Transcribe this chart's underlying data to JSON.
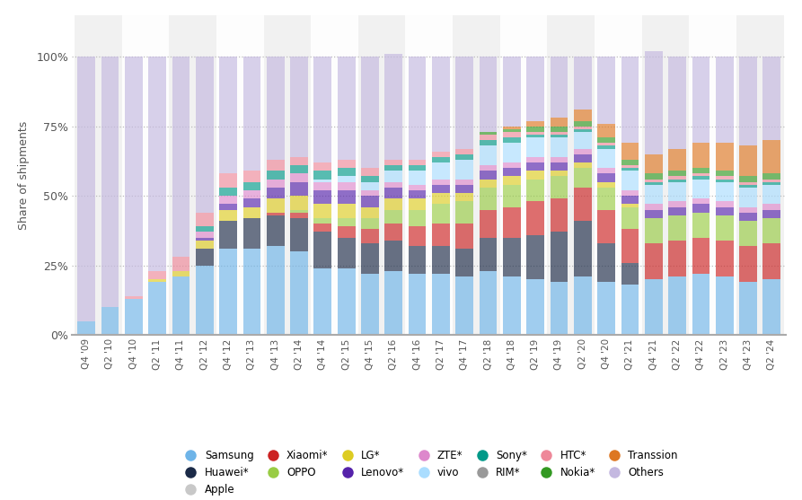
{
  "ylabel": "Share of shipments",
  "quarters": [
    "Q4 '09",
    "Q2 '10",
    "Q4 '10",
    "Q2 '11",
    "Q4 '11",
    "Q2 '12",
    "Q4 '12",
    "Q2 '13",
    "Q4 '13",
    "Q2 '14",
    "Q4 '14",
    "Q2 '15",
    "Q4 '15",
    "Q2 '16",
    "Q4 '16",
    "Q2 '17",
    "Q4 '17",
    "Q2 '18",
    "Q4 '18",
    "Q2 '19",
    "Q4 '19",
    "Q2 '20",
    "Q4 '20",
    "Q2 '21",
    "Q4 '21",
    "Q2 '22",
    "Q4 '22",
    "Q2 '23",
    "Q4 '23",
    "Q2 '24"
  ],
  "series": [
    {
      "name": "Samsung",
      "color": "#6eb4e8",
      "data": [
        5,
        10,
        13,
        19,
        21,
        25,
        31,
        31,
        32,
        30,
        24,
        24,
        22,
        23,
        22,
        22,
        21,
        23,
        21,
        20,
        19,
        21,
        19,
        18,
        20,
        21,
        22,
        21,
        19,
        20
      ]
    },
    {
      "name": "Huawei*",
      "color": "#1b2a47",
      "data": [
        0,
        0,
        0,
        0,
        0,
        6,
        10,
        11,
        11,
        12,
        13,
        11,
        11,
        11,
        10,
        10,
        10,
        12,
        14,
        16,
        18,
        20,
        14,
        8,
        0,
        0,
        0,
        0,
        0,
        0
      ]
    },
    {
      "name": "Apple",
      "color": "#c8c8c8",
      "data": [
        0,
        0,
        0,
        0,
        0,
        0,
        0,
        0,
        0,
        0,
        0,
        0,
        0,
        0,
        0,
        0,
        0,
        0,
        0,
        0,
        0,
        0,
        0,
        0,
        0,
        0,
        0,
        0,
        0,
        0
      ]
    },
    {
      "name": "Xiaomi*",
      "color": "#cc2222",
      "data": [
        0,
        0,
        0,
        0,
        0,
        0,
        0,
        0,
        1,
        2,
        3,
        4,
        5,
        6,
        7,
        8,
        9,
        10,
        11,
        12,
        12,
        12,
        12,
        12,
        13,
        13,
        13,
        13,
        13,
        13
      ]
    },
    {
      "name": "OPPO",
      "color": "#99cc44",
      "data": [
        0,
        0,
        0,
        0,
        0,
        0,
        0,
        0,
        0,
        1,
        2,
        3,
        4,
        5,
        6,
        7,
        8,
        8,
        8,
        8,
        8,
        7,
        8,
        8,
        9,
        9,
        9,
        9,
        9,
        9
      ]
    },
    {
      "name": "LG*",
      "color": "#ddcc22",
      "data": [
        0,
        0,
        0,
        1,
        2,
        3,
        4,
        4,
        5,
        5,
        5,
        5,
        4,
        4,
        4,
        4,
        3,
        3,
        3,
        3,
        2,
        2,
        2,
        1,
        0,
        0,
        0,
        0,
        0,
        0
      ]
    },
    {
      "name": "Lenovo*",
      "color": "#5522aa",
      "data": [
        0,
        0,
        0,
        0,
        0,
        1,
        2,
        3,
        4,
        5,
        5,
        5,
        4,
        4,
        3,
        3,
        3,
        3,
        3,
        3,
        3,
        3,
        3,
        3,
        3,
        3,
        3,
        3,
        3,
        3
      ]
    },
    {
      "name": "ZTE*",
      "color": "#dd88cc",
      "data": [
        0,
        0,
        0,
        0,
        0,
        2,
        3,
        3,
        3,
        3,
        3,
        3,
        2,
        2,
        2,
        2,
        2,
        2,
        2,
        2,
        2,
        2,
        2,
        2,
        2,
        2,
        2,
        2,
        2,
        2
      ]
    },
    {
      "name": "vivo",
      "color": "#aaddff",
      "data": [
        0,
        0,
        0,
        0,
        0,
        0,
        0,
        0,
        0,
        0,
        1,
        2,
        3,
        4,
        5,
        6,
        7,
        7,
        7,
        7,
        7,
        6,
        7,
        7,
        7,
        7,
        7,
        7,
        7,
        7
      ]
    },
    {
      "name": "Sony*",
      "color": "#009988",
      "data": [
        0,
        0,
        0,
        0,
        0,
        2,
        3,
        3,
        3,
        3,
        3,
        3,
        2,
        2,
        2,
        2,
        2,
        2,
        2,
        1,
        1,
        1,
        1,
        1,
        1,
        1,
        1,
        1,
        1,
        1
      ]
    },
    {
      "name": "RIM*",
      "color": "#999999",
      "data": [
        0,
        0,
        0,
        0,
        0,
        0,
        0,
        0,
        0,
        0,
        0,
        0,
        0,
        0,
        0,
        0,
        0,
        0,
        0,
        0,
        0,
        0,
        0,
        0,
        0,
        0,
        0,
        0,
        0,
        0
      ]
    },
    {
      "name": "HTC*",
      "color": "#ee8899",
      "data": [
        0,
        0,
        1,
        3,
        5,
        5,
        5,
        4,
        4,
        3,
        3,
        3,
        3,
        2,
        2,
        2,
        2,
        2,
        2,
        1,
        1,
        1,
        1,
        1,
        1,
        1,
        1,
        1,
        1,
        1
      ]
    },
    {
      "name": "Nokia*",
      "color": "#339922",
      "data": [
        0,
        0,
        0,
        0,
        0,
        0,
        0,
        0,
        0,
        0,
        0,
        0,
        0,
        0,
        0,
        0,
        0,
        1,
        1,
        2,
        2,
        2,
        2,
        2,
        2,
        2,
        2,
        2,
        2,
        2
      ]
    },
    {
      "name": "Transsion",
      "color": "#dd7722",
      "data": [
        0,
        0,
        0,
        0,
        0,
        0,
        0,
        0,
        0,
        0,
        0,
        0,
        0,
        0,
        0,
        0,
        0,
        0,
        1,
        2,
        3,
        4,
        5,
        6,
        7,
        8,
        9,
        10,
        11,
        12
      ]
    },
    {
      "name": "Others",
      "color": "#c4b8e0",
      "data": [
        95,
        90,
        86,
        77,
        72,
        56,
        42,
        41,
        37,
        36,
        38,
        37,
        40,
        38,
        37,
        34,
        33,
        27,
        25,
        23,
        22,
        19,
        24,
        31,
        37,
        33,
        31,
        31,
        32,
        30
      ]
    }
  ]
}
